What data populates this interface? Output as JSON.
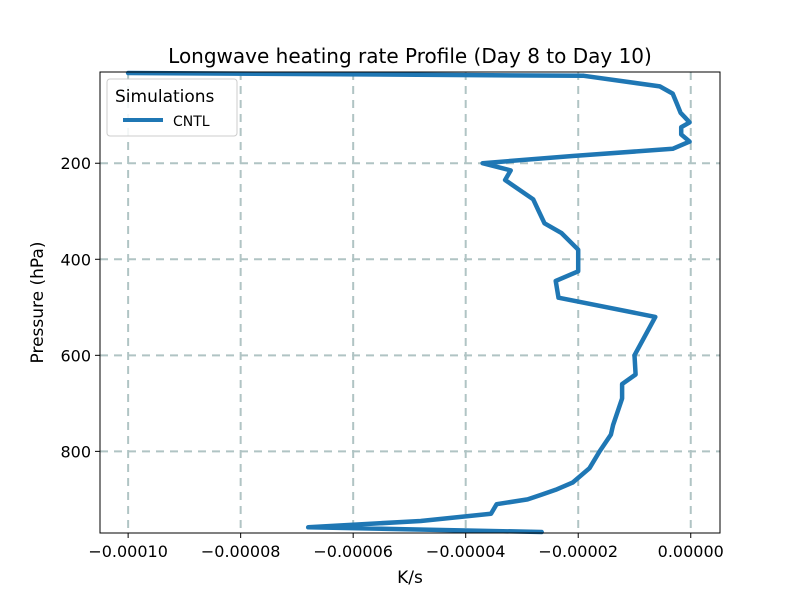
{
  "chart_data": {
    "type": "line",
    "title": "Longwave heating rate Profile (Day 8 to Day 10)",
    "xlabel": "K/s",
    "ylabel": "Pressure (hPa)",
    "xlim": [
      -0.000105,
      5.2e-06
    ],
    "ylim": [
      970,
      10
    ],
    "y_inverted": true,
    "grid": true,
    "legend_placement": "top-left",
    "legend_title": "Simulations",
    "xticks": [
      -0.0001,
      -8e-05,
      -6e-05,
      -4e-05,
      -2e-05,
      0.0
    ],
    "xtick_labels": [
      "−0.00010",
      "−0.00008",
      "−0.00006",
      "−0.00004",
      "−0.00002",
      "0.00000"
    ],
    "yticks": [
      200,
      400,
      600,
      800
    ],
    "ytick_labels": [
      "200",
      "400",
      "600",
      "800"
    ],
    "colors": {
      "series": "#1f77b4",
      "grid": "#b0c4c4"
    },
    "series": [
      {
        "name": "CNTL",
        "x": [
          -0.0001,
          -1.9e-05,
          -5.5e-06,
          -3.2e-06,
          -2.5e-06,
          -1.8e-06,
          -1e-06,
          -2e-07,
          -1.7e-06,
          -1.7e-06,
          -2e-07,
          -3.2e-06,
          -2.1e-05,
          -3.7e-05,
          -3.2e-05,
          -3.3e-05,
          -2.8e-05,
          -2.7e-05,
          -2.6e-05,
          -2.3e-05,
          -2e-05,
          -2e-05,
          -2.4e-05,
          -2.35e-05,
          -6.3e-06,
          -1e-05,
          -9.8e-06,
          -1.22e-05,
          -1.22e-05,
          -1.38e-05,
          -1.42e-05,
          -1.62e-05,
          -1.8e-05,
          -2.1e-05,
          -2.4e-05,
          -2.65e-05,
          -2.9e-05,
          -3.45e-05,
          -3.55e-05,
          -4.8e-05,
          -6.8e-05,
          -2.65e-05
        ],
        "y": [
          12,
          18,
          40,
          55,
          75,
          95,
          105,
          115,
          125,
          140,
          155,
          170,
          185,
          200,
          215,
          235,
          275,
          300,
          325,
          345,
          380,
          425,
          445,
          480,
          520,
          600,
          640,
          660,
          690,
          745,
          765,
          800,
          835,
          865,
          880,
          890,
          900,
          910,
          930,
          945,
          958,
          968
        ]
      }
    ]
  }
}
